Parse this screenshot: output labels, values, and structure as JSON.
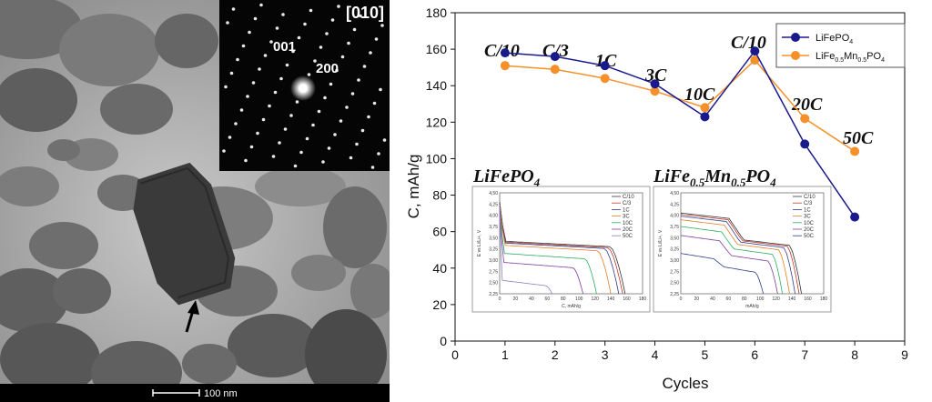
{
  "micrograph": {
    "zone_axis": "[010]",
    "spot_labels": [
      "001",
      "200"
    ],
    "scale_bar_label": "100 nm"
  },
  "chart_data": {
    "type": "line",
    "xlabel": "Cycles",
    "ylabel": "C, mAh/g",
    "xlim": [
      0,
      9
    ],
    "ylim": [
      0,
      180
    ],
    "x_ticks": [
      0,
      1,
      2,
      3,
      4,
      5,
      6,
      7,
      8,
      9
    ],
    "y_ticks": [
      0,
      20,
      40,
      60,
      80,
      100,
      120,
      140,
      160,
      180
    ],
    "grid": false,
    "legend_position": "top-right",
    "series": [
      {
        "name": "LiFePO4",
        "color": "#1a1a8c",
        "x": [
          1,
          2,
          3,
          4,
          5,
          6,
          7,
          8
        ],
        "y": [
          158,
          156,
          151,
          141,
          123,
          159,
          108,
          68
        ]
      },
      {
        "name": "LiFe0.5Mn0.5PO4",
        "color": "#f5902a",
        "x": [
          1,
          2,
          3,
          4,
          5,
          6,
          7,
          8
        ],
        "y": [
          151,
          149,
          144,
          137,
          128,
          154,
          122,
          104
        ]
      }
    ],
    "annotations": [
      "C/10",
      "C/3",
      "1C",
      "3C",
      "10C",
      "C/10",
      "20C",
      "50C"
    ],
    "insets": [
      {
        "title": "LiFePO4",
        "xlabel": "C, mAh/g",
        "ylabel": "E vs Li/Li+, V",
        "xlim": [
          0,
          180
        ],
        "ylim": [
          2.25,
          4.5
        ],
        "x_ticks": [
          0,
          20,
          40,
          60,
          80,
          100,
          120,
          140,
          160,
          180
        ],
        "y_ticks": [
          2.25,
          2.5,
          2.75,
          3.0,
          3.25,
          3.5,
          3.75,
          4.0,
          4.25,
          4.5
        ],
        "tick_labels_y": [
          "2,25",
          "2,50",
          "2,75",
          "3,00",
          "3,25",
          "3,50",
          "3,75",
          "4,00",
          "4,25",
          "4,50"
        ],
        "legend": [
          "C/10",
          "C/3",
          "1C",
          "3C",
          "10C",
          "20C",
          "50C"
        ],
        "colors": [
          "#333333",
          "#c0392b",
          "#2c3e8c",
          "#e67e22",
          "#27ae60",
          "#7a3e9d",
          "#8e7cc3"
        ],
        "curves": [
          {
            "plateau": 3.42,
            "capacity": 158
          },
          {
            "plateau": 3.4,
            "capacity": 155
          },
          {
            "plateau": 3.38,
            "capacity": 150
          },
          {
            "plateau": 3.33,
            "capacity": 140
          },
          {
            "plateau": 3.15,
            "capacity": 122
          },
          {
            "plateau": 2.95,
            "capacity": 105
          },
          {
            "plateau": 2.55,
            "capacity": 66
          }
        ]
      },
      {
        "title": "LiFe0.5Mn0.5PO4",
        "xlabel": "mAh/g",
        "ylabel": "E vs Li/Li+, V",
        "xlim": [
          0,
          180
        ],
        "ylim": [
          2.25,
          4.5
        ],
        "x_ticks": [
          0,
          20,
          40,
          60,
          80,
          100,
          120,
          140,
          160,
          180
        ],
        "y_ticks": [
          2.25,
          2.5,
          2.75,
          3.0,
          3.25,
          3.5,
          3.75,
          4.0,
          4.25,
          4.5
        ],
        "tick_labels_y": [
          "2,25",
          "2,50",
          "2,75",
          "3,00",
          "3,25",
          "3,50",
          "3,75",
          "4,00",
          "4,25",
          "4,50"
        ],
        "legend": [
          "C/10",
          "C/3",
          "1C",
          "3C",
          "10C",
          "20C",
          "50C"
        ],
        "colors": [
          "#333333",
          "#c0392b",
          "#2c3e8c",
          "#e67e22",
          "#27ae60",
          "#7a3e9d",
          "#2c3e8c"
        ],
        "curves": [
          {
            "high": 4.05,
            "low": 3.45,
            "capacity": 152
          },
          {
            "high": 4.02,
            "low": 3.43,
            "capacity": 149
          },
          {
            "high": 3.98,
            "low": 3.4,
            "capacity": 144
          },
          {
            "high": 3.9,
            "low": 3.35,
            "capacity": 137
          },
          {
            "high": 3.75,
            "low": 3.25,
            "capacity": 128
          },
          {
            "high": 3.55,
            "low": 3.1,
            "capacity": 122
          },
          {
            "high": 3.15,
            "low": 2.85,
            "capacity": 104
          }
        ]
      }
    ]
  }
}
